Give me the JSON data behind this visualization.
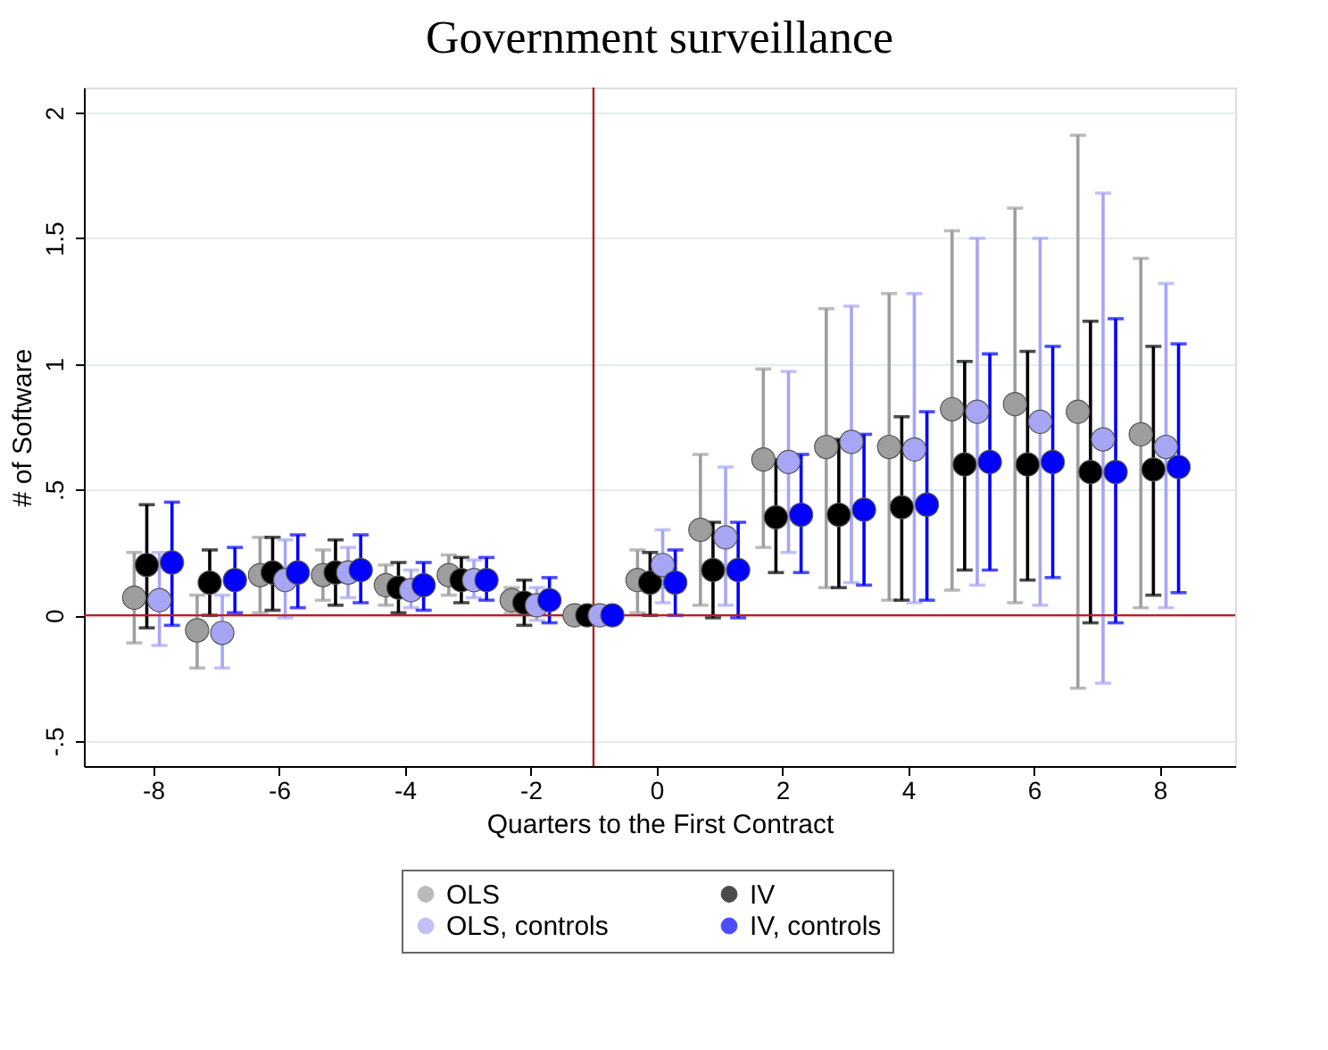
{
  "chart_data": {
    "type": "scatter",
    "title": "Government surveillance",
    "xlabel": "Quarters to the First Contract",
    "ylabel": "# of Software",
    "xlim": [
      -9.1,
      9.2
    ],
    "xticks": [
      -8,
      -6,
      -4,
      -2,
      0,
      2,
      4,
      6,
      8
    ],
    "ylim": [
      -0.6,
      2.1
    ],
    "yticks": [
      {
        "value": -0.5,
        "label": "-.5"
      },
      0,
      {
        "value": 0.5,
        "label": ".5"
      },
      1,
      1.5,
      2
    ],
    "grid": "y",
    "legend": "bottom",
    "marker": "circle",
    "ref_lines": [
      {
        "axis": "y",
        "value": 0,
        "color": "#b22222"
      },
      {
        "axis": "x",
        "value": -1,
        "color": "#b22222"
      }
    ],
    "series": [
      {
        "name": "OLS",
        "color": "#9e9e9e",
        "x": [
          -8.3,
          -7.3,
          -6.3,
          -5.3,
          -4.3,
          -3.3,
          -2.3,
          -1.3,
          -0.3,
          0.7,
          1.7,
          2.7,
          3.7,
          4.7,
          5.7,
          6.7,
          7.7
        ],
        "values": [
          0.07,
          -0.06,
          0.16,
          0.16,
          0.12,
          0.16,
          0.06,
          0,
          0.14,
          0.34,
          0.62,
          0.67,
          0.67,
          0.82,
          0.84,
          0.81,
          0.72
        ],
        "errors": [
          [
            -0.11,
            0.25
          ],
          [
            -0.21,
            0.08
          ],
          [
            0.01,
            0.31
          ],
          [
            0.06,
            0.26
          ],
          [
            0.04,
            0.2
          ],
          [
            0.08,
            0.24
          ],
          [
            0.01,
            0.11
          ],
          null,
          [
            0.01,
            0.26
          ],
          [
            0.04,
            0.64
          ],
          [
            0.27,
            0.98
          ],
          [
            0.11,
            1.22
          ],
          [
            0.06,
            1.28
          ],
          [
            0.1,
            1.53
          ],
          [
            0.05,
            1.62
          ],
          [
            -0.29,
            1.91
          ],
          [
            0.03,
            1.42
          ]
        ]
      },
      {
        "name": "IV",
        "color": "#000000",
        "x": [
          -8.1,
          -7.1,
          -6.1,
          -5.1,
          -4.1,
          -3.1,
          -2.1,
          -1.1,
          -0.1,
          0.9,
          1.9,
          2.9,
          3.9,
          4.9,
          5.9,
          6.9,
          7.9
        ],
        "values": [
          0.2,
          0.13,
          0.17,
          0.17,
          0.11,
          0.14,
          0.05,
          0,
          0.13,
          0.18,
          0.39,
          0.4,
          0.43,
          0.6,
          0.6,
          0.57,
          0.58
        ],
        "errors": [
          [
            -0.05,
            0.44
          ],
          [
            0,
            0.26
          ],
          [
            0.02,
            0.31
          ],
          [
            0.04,
            0.3
          ],
          [
            0.01,
            0.21
          ],
          [
            0.05,
            0.23
          ],
          [
            -0.04,
            0.14
          ],
          null,
          [
            0,
            0.25
          ],
          [
            -0.01,
            0.37
          ],
          [
            0.17,
            0.62
          ],
          [
            0.11,
            0.7
          ],
          [
            0.06,
            0.79
          ],
          [
            0.18,
            1.01
          ],
          [
            0.14,
            1.05
          ],
          [
            -0.03,
            1.17
          ],
          [
            0.08,
            1.07
          ]
        ]
      },
      {
        "name": "OLS, controls",
        "color": "#a6a6f5",
        "x": [
          -7.9,
          -6.9,
          -5.9,
          -4.9,
          -3.9,
          -2.9,
          -1.9,
          -0.9,
          0.1,
          1.1,
          2.1,
          3.1,
          4.1,
          5.1,
          6.1,
          7.1,
          8.1
        ],
        "values": [
          0.06,
          -0.07,
          0.14,
          0.17,
          0.1,
          0.14,
          0.04,
          0,
          0.2,
          0.31,
          0.61,
          0.69,
          0.66,
          0.81,
          0.77,
          0.7,
          0.67
        ],
        "errors": [
          [
            -0.12,
            0.25
          ],
          [
            -0.21,
            0.08
          ],
          [
            -0.01,
            0.3
          ],
          [
            0.07,
            0.27
          ],
          [
            0.03,
            0.18
          ],
          [
            0.07,
            0.22
          ],
          [
            -0.02,
            0.11
          ],
          null,
          [
            0.05,
            0.34
          ],
          [
            0.04,
            0.59
          ],
          [
            0.25,
            0.97
          ],
          [
            0.13,
            1.23
          ],
          [
            0.05,
            1.28
          ],
          [
            0.12,
            1.5
          ],
          [
            0.04,
            1.5
          ],
          [
            -0.27,
            1.68
          ],
          [
            0.03,
            1.32
          ]
        ]
      },
      {
        "name": "IV, controls",
        "color": "#0000ff",
        "x": [
          -7.7,
          -6.7,
          -5.7,
          -4.7,
          -3.7,
          -2.7,
          -1.7,
          -0.7,
          0.3,
          1.3,
          2.3,
          3.3,
          4.3,
          5.3,
          6.3,
          7.3,
          8.3
        ],
        "values": [
          0.21,
          0.14,
          0.17,
          0.18,
          0.12,
          0.14,
          0.06,
          0,
          0.13,
          0.18,
          0.4,
          0.42,
          0.44,
          0.61,
          0.61,
          0.57,
          0.59
        ],
        "errors": [
          [
            -0.04,
            0.45
          ],
          [
            0.01,
            0.27
          ],
          [
            0.03,
            0.32
          ],
          [
            0.05,
            0.32
          ],
          [
            0.02,
            0.21
          ],
          [
            0.06,
            0.23
          ],
          [
            -0.03,
            0.15
          ],
          null,
          [
            0,
            0.26
          ],
          [
            -0.01,
            0.37
          ],
          [
            0.17,
            0.64
          ],
          [
            0.12,
            0.72
          ],
          [
            0.06,
            0.81
          ],
          [
            0.18,
            1.04
          ],
          [
            0.15,
            1.07
          ],
          [
            -0.03,
            1.18
          ],
          [
            0.09,
            1.08
          ]
        ]
      }
    ]
  }
}
